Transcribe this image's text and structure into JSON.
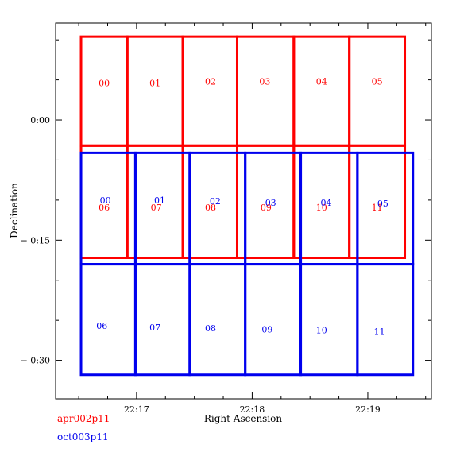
{
  "chart_data": {
    "type": "scatter",
    "xlabel": "Right Ascension",
    "ylabel": "Declination",
    "x_ticks": [
      "22:17",
      "22:18",
      "22:19"
    ],
    "y_ticks": [
      "0:00",
      "− 0:15",
      "− 0:30"
    ],
    "x_axis_units": "minutes of RA (22h + m)",
    "y_axis_units": "arcminutes of declination",
    "xlim": [
      16.3,
      19.55
    ],
    "ylim": [
      -34.8,
      12.1
    ],
    "x_reversed": false,
    "grid": false,
    "legend_placement": "bottom-left, below axes",
    "series": [
      {
        "name": "apr002p11",
        "color": "#ff0000",
        "grid_columns": 6,
        "grid_rows": 2,
        "column_edges_ra_min": [
          16.52,
          16.92,
          17.4,
          17.87,
          18.36,
          18.84,
          19.32
        ],
        "row_edges_dec_arcmin": [
          10.4,
          -3.2,
          -17.2
        ],
        "chips": [
          {
            "label": "00",
            "ra": 16.72,
            "dec": 4.6
          },
          {
            "label": "01",
            "ra": 17.16,
            "dec": 4.6
          },
          {
            "label": "02",
            "ra": 17.64,
            "dec": 4.8
          },
          {
            "label": "03",
            "ra": 18.11,
            "dec": 4.8
          },
          {
            "label": "04",
            "ra": 18.6,
            "dec": 4.8
          },
          {
            "label": "05",
            "ra": 19.08,
            "dec": 4.8
          },
          {
            "label": "06",
            "ra": 16.72,
            "dec": -10.9
          },
          {
            "label": "07",
            "ra": 17.17,
            "dec": -10.9
          },
          {
            "label": "08",
            "ra": 17.64,
            "dec": -10.9
          },
          {
            "label": "09",
            "ra": 18.12,
            "dec": -10.9
          },
          {
            "label": "10",
            "ra": 18.6,
            "dec": -10.9
          },
          {
            "label": "11",
            "ra": 19.08,
            "dec": -10.9
          }
        ]
      },
      {
        "name": "oct003p11",
        "color": "#0000ee",
        "grid_columns": 6,
        "grid_rows": 2,
        "column_edges_ra_min": [
          16.52,
          16.99,
          17.46,
          17.94,
          18.42,
          18.91,
          19.39
        ],
        "row_edges_dec_arcmin": [
          -4.1,
          -18.0,
          -31.8
        ],
        "chips": [
          {
            "label": "00",
            "ra": 16.73,
            "dec": -10.0
          },
          {
            "label": "01",
            "ra": 17.2,
            "dec": -10.0
          },
          {
            "label": "02",
            "ra": 17.68,
            "dec": -10.1
          },
          {
            "label": "03",
            "ra": 18.16,
            "dec": -10.3
          },
          {
            "label": "04",
            "ra": 18.64,
            "dec": -10.3
          },
          {
            "label": "05",
            "ra": 19.13,
            "dec": -10.4
          },
          {
            "label": "06",
            "ra": 16.7,
            "dec": -25.7
          },
          {
            "label": "07",
            "ra": 17.16,
            "dec": -25.9
          },
          {
            "label": "08",
            "ra": 17.64,
            "dec": -26.0
          },
          {
            "label": "09",
            "ra": 18.13,
            "dec": -26.1
          },
          {
            "label": "10",
            "ra": 18.6,
            "dec": -26.2
          },
          {
            "label": "11",
            "ra": 19.1,
            "dec": -26.4
          }
        ]
      }
    ]
  }
}
